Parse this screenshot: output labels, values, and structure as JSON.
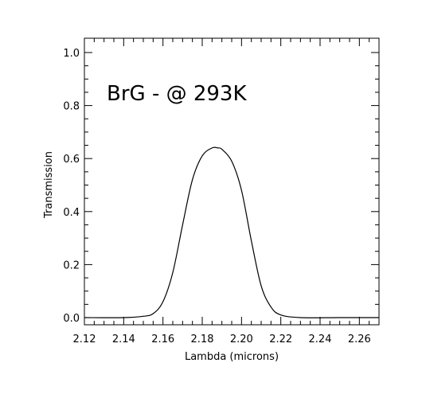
{
  "chart_data": {
    "type": "line",
    "title": "",
    "xlabel": "Lambda (microns)",
    "ylabel": "Transmission",
    "xlim": [
      2.12,
      2.27
    ],
    "ylim": [
      0.0,
      1.0
    ],
    "x_ticks": [
      2.12,
      2.14,
      2.16,
      2.18,
      2.2,
      2.22,
      2.24,
      2.26
    ],
    "x_tick_labels": [
      "2.12",
      "2.14",
      "2.16",
      "2.18",
      "2.20",
      "2.22",
      "2.24",
      "2.26"
    ],
    "y_ticks": [
      0.0,
      0.2,
      0.4,
      0.6,
      0.8,
      1.0
    ],
    "y_tick_labels": [
      "0.0",
      "0.2",
      "0.4",
      "0.6",
      "0.8",
      "1.0"
    ],
    "grid": false,
    "annotation": "BrG - @ 293K",
    "line_color": "#000000",
    "series": [
      {
        "x": [
          2.12,
          2.14,
          2.15,
          2.155,
          2.16,
          2.165,
          2.17,
          2.175,
          2.18,
          2.185,
          2.188,
          2.19,
          2.195,
          2.2,
          2.205,
          2.21,
          2.215,
          2.22,
          2.23,
          2.25,
          2.27
        ],
        "y": [
          0.0,
          0.0,
          0.005,
          0.015,
          0.06,
          0.17,
          0.35,
          0.52,
          0.61,
          0.64,
          0.64,
          0.635,
          0.59,
          0.48,
          0.29,
          0.12,
          0.04,
          0.01,
          0.0,
          0.0,
          0.0
        ]
      }
    ]
  }
}
